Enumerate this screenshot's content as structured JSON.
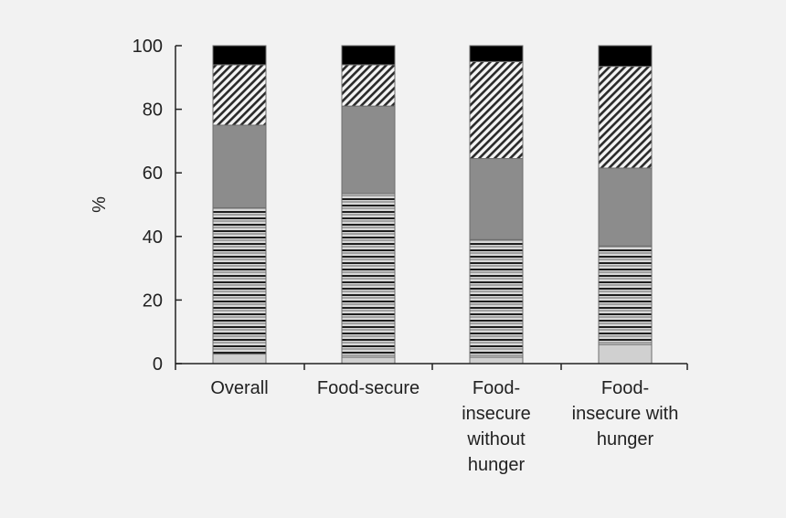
{
  "chart_data": {
    "type": "bar",
    "stacked": true,
    "ylabel": "%",
    "ylim": [
      0,
      100
    ],
    "yticks": [
      0,
      20,
      40,
      60,
      80,
      100
    ],
    "categories": [
      [
        "Overall"
      ],
      [
        "Food-secure"
      ],
      [
        "Food-",
        "insecure",
        "without",
        "hunger"
      ],
      [
        "Food-",
        "insecure with",
        "hunger"
      ]
    ],
    "series": [
      {
        "pattern": "light-gray-solid",
        "color": "#d0d0d0",
        "values": [
          3,
          2,
          2,
          6
        ]
      },
      {
        "pattern": "horizontal-lines",
        "color": "#555555",
        "values": [
          46,
          51.5,
          37,
          31
        ]
      },
      {
        "pattern": "medium-gray-solid",
        "color": "#8c8c8c",
        "values": [
          26,
          27.5,
          25.5,
          24.5
        ]
      },
      {
        "pattern": "diagonal-hatch",
        "color": "#3a3a3a",
        "values": [
          19,
          13,
          30.5,
          32
        ]
      },
      {
        "pattern": "black-solid",
        "color": "#000000",
        "values": [
          6,
          6,
          5,
          6.5
        ]
      }
    ],
    "grid": false,
    "legend": "none"
  }
}
